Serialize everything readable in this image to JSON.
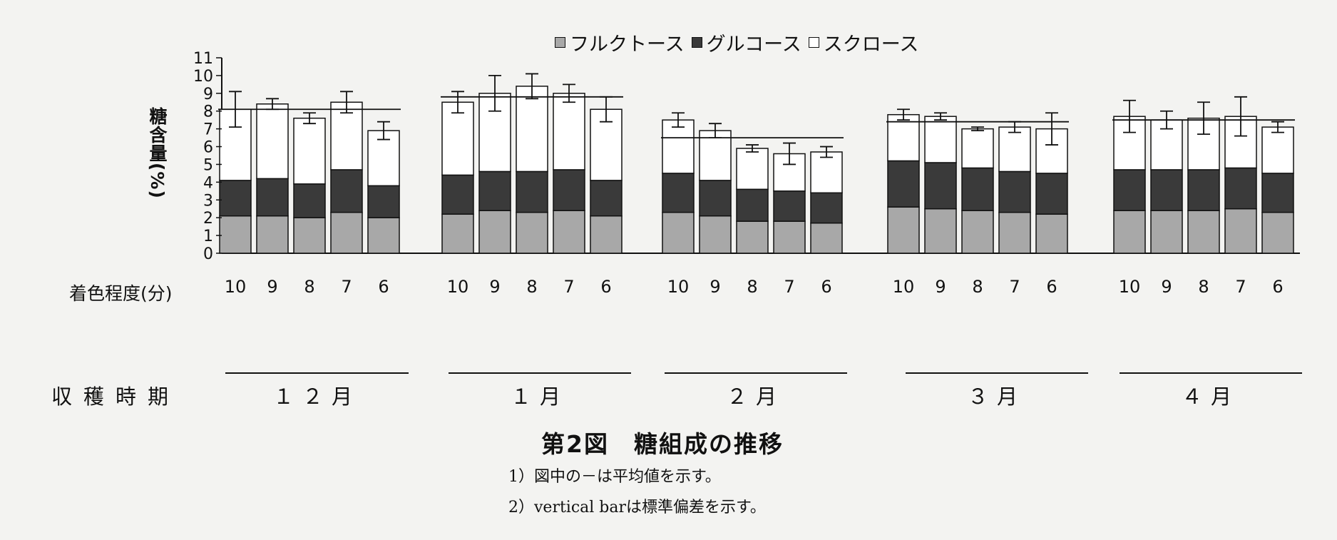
{
  "legend": {
    "fructose": "フルクトース",
    "glucose": "グルコース",
    "sucrose": "スクロース"
  },
  "colors": {
    "fructose": "#a8a8a8",
    "glucose": "#3a3a3a",
    "sucrose": "#ffffff"
  },
  "ylabel": "糖含量(%)",
  "xlabel": "着色程度(分)",
  "harvest_label": "収穫時期",
  "figure_title": "第2図　糖組成の推移",
  "notes": [
    "1）図中の－は平均値を示す。",
    "2）vertical barは標準偏差を示す。"
  ],
  "chart_data": {
    "type": "bar",
    "stacked": true,
    "ylabel": "糖含量(%)",
    "xlabel": "着色程度(分)",
    "ylim": [
      0,
      11
    ],
    "yticks": [
      "0",
      "1",
      "2",
      "3",
      "4",
      "5",
      "6",
      "7",
      "8",
      "9",
      "10",
      "11"
    ],
    "series_names": [
      "フルクトース",
      "グルコース",
      "スクロース"
    ],
    "groups": [
      {
        "month": "１２月",
        "mean": 8.1,
        "bars": [
          {
            "color_grade": "10",
            "fructose": 2.1,
            "glucose": 2.0,
            "sucrose": 4.0,
            "sd": 1.0
          },
          {
            "color_grade": "9",
            "fructose": 2.1,
            "glucose": 2.1,
            "sucrose": 4.2,
            "sd": 0.3
          },
          {
            "color_grade": "8",
            "fructose": 2.0,
            "glucose": 1.9,
            "sucrose": 3.7,
            "sd": 0.3
          },
          {
            "color_grade": "7",
            "fructose": 2.3,
            "glucose": 2.4,
            "sucrose": 3.8,
            "sd": 0.6
          },
          {
            "color_grade": "6",
            "fructose": 2.0,
            "glucose": 1.8,
            "sucrose": 3.1,
            "sd": 0.5
          }
        ]
      },
      {
        "month": "１月",
        "mean": 8.8,
        "bars": [
          {
            "color_grade": "10",
            "fructose": 2.2,
            "glucose": 2.2,
            "sucrose": 4.1,
            "sd": 0.6
          },
          {
            "color_grade": "9",
            "fructose": 2.4,
            "glucose": 2.2,
            "sucrose": 4.4,
            "sd": 1.0
          },
          {
            "color_grade": "8",
            "fructose": 2.3,
            "glucose": 2.3,
            "sucrose": 4.8,
            "sd": 0.7
          },
          {
            "color_grade": "7",
            "fructose": 2.4,
            "glucose": 2.3,
            "sucrose": 4.3,
            "sd": 0.5
          },
          {
            "color_grade": "6",
            "fructose": 2.1,
            "glucose": 2.0,
            "sucrose": 4.0,
            "sd": 0.7
          }
        ]
      },
      {
        "month": "２月",
        "mean": 6.5,
        "bars": [
          {
            "color_grade": "10",
            "fructose": 2.3,
            "glucose": 2.2,
            "sucrose": 3.0,
            "sd": 0.4
          },
          {
            "color_grade": "9",
            "fructose": 2.1,
            "glucose": 2.0,
            "sucrose": 2.8,
            "sd": 0.4
          },
          {
            "color_grade": "8",
            "fructose": 1.8,
            "glucose": 1.8,
            "sucrose": 2.3,
            "sd": 0.2
          },
          {
            "color_grade": "7",
            "fructose": 1.8,
            "glucose": 1.7,
            "sucrose": 2.1,
            "sd": 0.6
          },
          {
            "color_grade": "6",
            "fructose": 1.7,
            "glucose": 1.7,
            "sucrose": 2.3,
            "sd": 0.3
          }
        ]
      },
      {
        "month": "３月",
        "mean": 7.4,
        "bars": [
          {
            "color_grade": "10",
            "fructose": 2.6,
            "glucose": 2.6,
            "sucrose": 2.6,
            "sd": 0.3
          },
          {
            "color_grade": "9",
            "fructose": 2.5,
            "glucose": 2.6,
            "sucrose": 2.6,
            "sd": 0.2
          },
          {
            "color_grade": "8",
            "fructose": 2.4,
            "glucose": 2.4,
            "sucrose": 2.2,
            "sd": 0.1
          },
          {
            "color_grade": "7",
            "fructose": 2.3,
            "glucose": 2.3,
            "sucrose": 2.5,
            "sd": 0.3
          },
          {
            "color_grade": "6",
            "fructose": 2.2,
            "glucose": 2.3,
            "sucrose": 2.5,
            "sd": 0.9
          }
        ]
      },
      {
        "month": "４月",
        "mean": 7.5,
        "bars": [
          {
            "color_grade": "10",
            "fructose": 2.4,
            "glucose": 2.3,
            "sucrose": 3.0,
            "sd": 0.9
          },
          {
            "color_grade": "9",
            "fructose": 2.4,
            "glucose": 2.3,
            "sucrose": 2.8,
            "sd": 0.5
          },
          {
            "color_grade": "8",
            "fructose": 2.4,
            "glucose": 2.3,
            "sucrose": 2.9,
            "sd": 0.9
          },
          {
            "color_grade": "7",
            "fructose": 2.5,
            "glucose": 2.3,
            "sucrose": 2.9,
            "sd": 1.1
          },
          {
            "color_grade": "6",
            "fructose": 2.3,
            "glucose": 2.2,
            "sucrose": 2.6,
            "sd": 0.3
          }
        ]
      }
    ]
  }
}
